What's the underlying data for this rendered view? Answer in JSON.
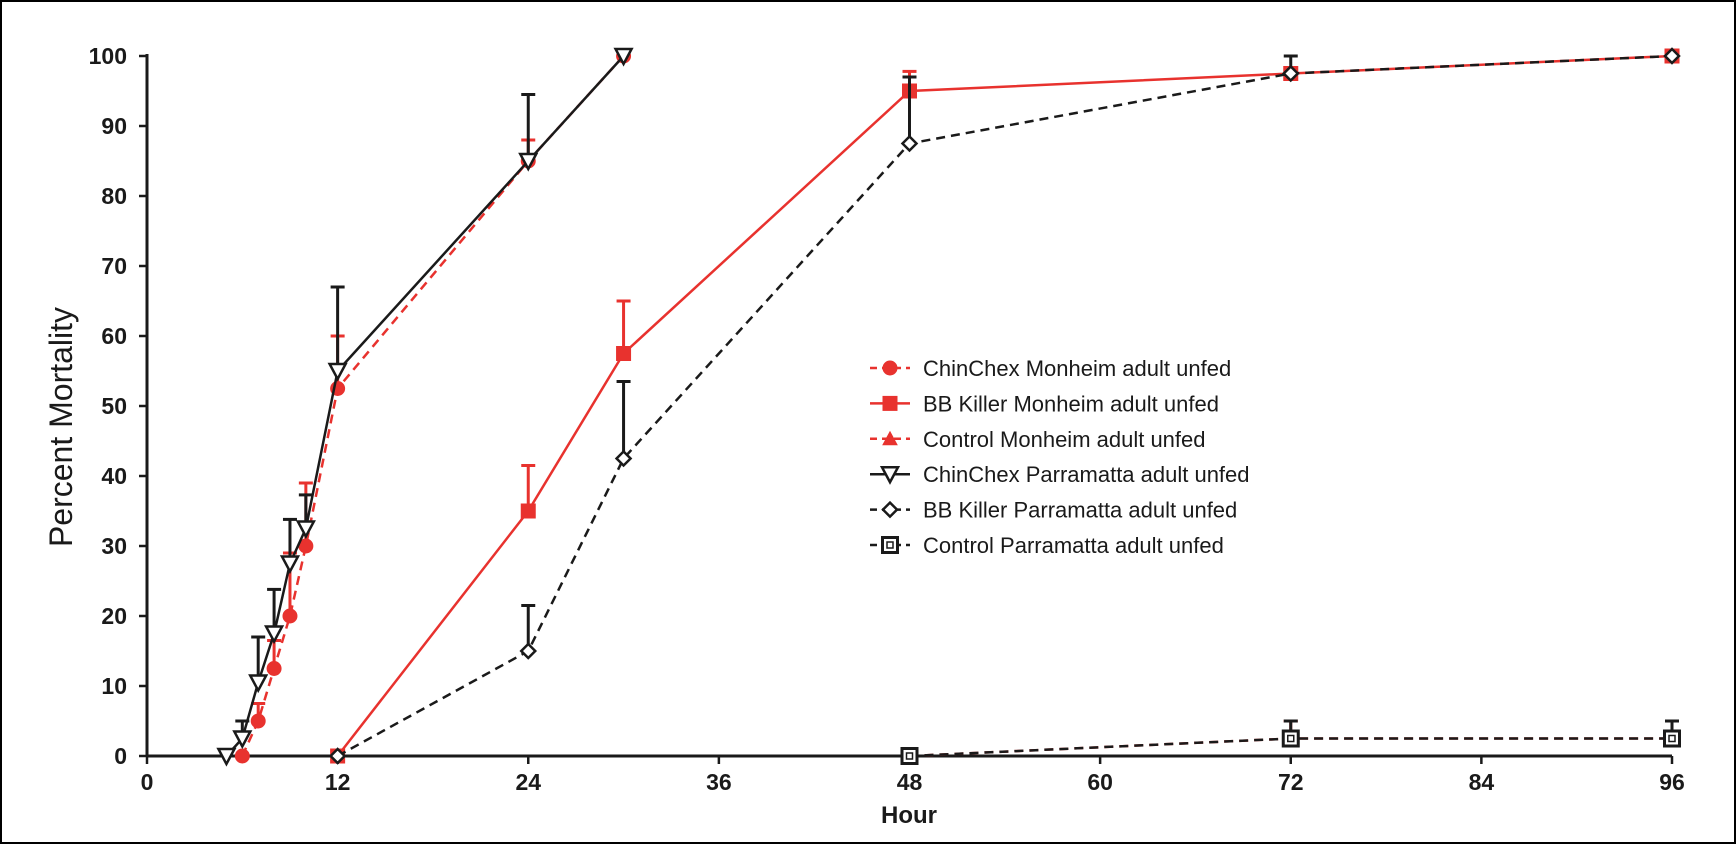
{
  "chart_data": {
    "type": "line",
    "title": "",
    "xlabel": "Hour",
    "ylabel": "Percent Mortality",
    "xlim": [
      0,
      96
    ],
    "ylim": [
      0,
      100
    ],
    "xticks": [
      0,
      12,
      24,
      36,
      48,
      60,
      72,
      84,
      96
    ],
    "yticks": [
      0,
      10,
      20,
      30,
      40,
      50,
      60,
      70,
      80,
      90,
      100
    ],
    "grid": false,
    "legend_position": "center-right",
    "series": [
      {
        "name": "ChinChex Monheim adult unfed",
        "color": "#e8322e",
        "line": "dashed",
        "marker": "circle-filled",
        "points": [
          {
            "x": 6,
            "y": 0
          },
          {
            "x": 7,
            "y": 5,
            "err": 2.5
          },
          {
            "x": 8,
            "y": 12.5,
            "err": 4
          },
          {
            "x": 9,
            "y": 20,
            "err": 9
          },
          {
            "x": 10,
            "y": 30,
            "err": 9
          },
          {
            "x": 12,
            "y": 52.5,
            "err": 7.5
          },
          {
            "x": 24,
            "y": 85,
            "err": 3
          },
          {
            "x": 30,
            "y": 100
          }
        ]
      },
      {
        "name": "BB Killer Monheim adult unfed",
        "color": "#e8322e",
        "line": "solid",
        "marker": "square-filled",
        "points": [
          {
            "x": 12,
            "y": 0
          },
          {
            "x": 24,
            "y": 35,
            "err": 6.5
          },
          {
            "x": 30,
            "y": 57.5,
            "err": 7.5
          },
          {
            "x": 48,
            "y": 95,
            "err": 2.8
          },
          {
            "x": 72,
            "y": 97.5
          },
          {
            "x": 96,
            "y": 100
          }
        ]
      },
      {
        "name": "Control Monheim adult unfed",
        "color": "#e8322e",
        "line": "dashed",
        "marker": "triangle-filled",
        "points": [
          {
            "x": 48,
            "y": 0
          },
          {
            "x": 72,
            "y": 2.5,
            "err": 2.5
          },
          {
            "x": 96,
            "y": 2.5,
            "err": 2.5
          }
        ]
      },
      {
        "name": "ChinChex Parramatta adult unfed",
        "color": "#1a1a1a",
        "line": "solid",
        "marker": "triangle-down-open",
        "points": [
          {
            "x": 5,
            "y": 0
          },
          {
            "x": 6,
            "y": 2.5,
            "err": 2.5
          },
          {
            "x": 7,
            "y": 10.5,
            "err": 6.5
          },
          {
            "x": 8,
            "y": 17.5,
            "err": 6.3
          },
          {
            "x": 9,
            "y": 27.5,
            "err": 6.3
          },
          {
            "x": 10,
            "y": 32.5,
            "err": 4.8
          },
          {
            "x": 12,
            "y": 55,
            "err": 12
          },
          {
            "x": 24,
            "y": 85,
            "err": 9.5
          },
          {
            "x": 30,
            "y": 100
          }
        ]
      },
      {
        "name": "BB Killer Parramatta adult unfed",
        "color": "#1a1a1a",
        "line": "dashed",
        "marker": "diamond-open",
        "points": [
          {
            "x": 12,
            "y": 0
          },
          {
            "x": 24,
            "y": 15,
            "err": 6.5
          },
          {
            "x": 30,
            "y": 42.5,
            "err": 11
          },
          {
            "x": 48,
            "y": 87.5,
            "err": 9.5
          },
          {
            "x": 72,
            "y": 97.5,
            "err": 2.5
          },
          {
            "x": 96,
            "y": 100
          }
        ]
      },
      {
        "name": "Control Parramatta adult unfed",
        "color": "#1a1a1a",
        "line": "dashed",
        "marker": "square-open",
        "points": [
          {
            "x": 48,
            "y": 0
          },
          {
            "x": 72,
            "y": 2.5,
            "err": 2.5
          },
          {
            "x": 96,
            "y": 2.5,
            "err": 2.5
          }
        ]
      }
    ]
  }
}
